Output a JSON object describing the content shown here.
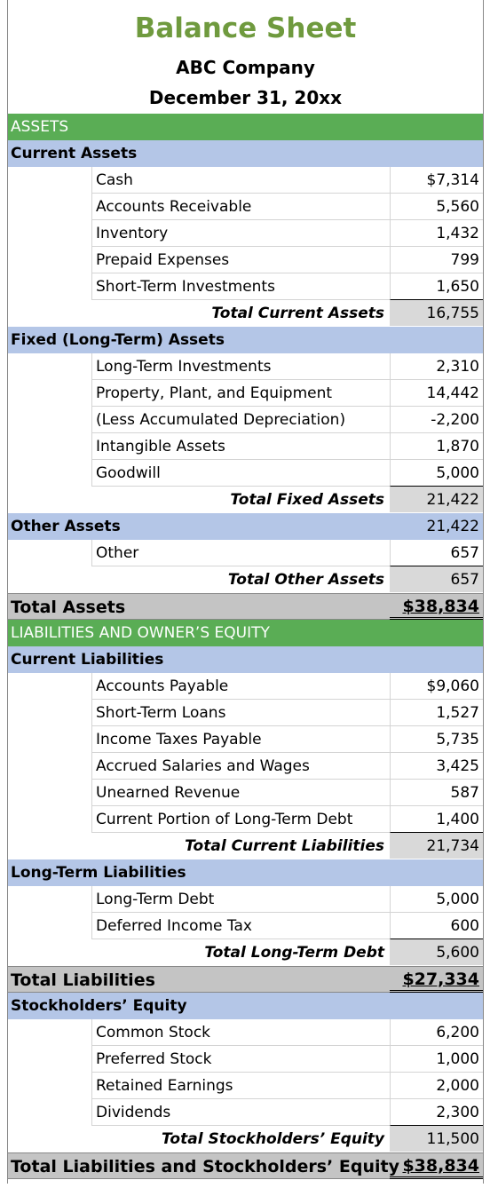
{
  "header": {
    "title": "Balance Sheet",
    "company": "ABC Company",
    "date": "December 31, 20xx"
  },
  "sections": [
    {
      "title": "ASSETS",
      "groups": [
        {
          "title": "Current Assets",
          "items": [
            [
              "Cash",
              "$7,314"
            ],
            [
              "Accounts Receivable",
              "5,560"
            ],
            [
              "Inventory",
              "1,432"
            ],
            [
              "Prepaid Expenses",
              "799"
            ],
            [
              "Short-Term Investments",
              "1,650"
            ]
          ],
          "total": [
            "Total Current Assets",
            "16,755"
          ]
        },
        {
          "title": "Fixed (Long-Term) Assets",
          "items": [
            [
              "Long-Term Investments",
              "2,310"
            ],
            [
              "Property, Plant, and Equipment",
              "14,442"
            ],
            [
              "(Less Accumulated Depreciation)",
              "-2,200"
            ],
            [
              "Intangible Assets",
              "1,870"
            ],
            [
              "Goodwill",
              "5,000"
            ]
          ],
          "total": [
            "Total Fixed Assets",
            "21,422"
          ]
        },
        {
          "title": "Other Assets",
          "value": "21,422",
          "items": [
            [
              "Other",
              "657"
            ]
          ],
          "total": [
            "Total Other Assets",
            "657"
          ]
        }
      ],
      "total": [
        "Total Assets",
        "$38,834"
      ]
    },
    {
      "title": "LIABILITIES AND OWNER’S EQUITY",
      "groups": [
        {
          "title": "Current Liabilities",
          "items": [
            [
              "Accounts Payable",
              "$9,060"
            ],
            [
              "Short-Term Loans",
              "1,527"
            ],
            [
              "Income Taxes Payable",
              "5,735"
            ],
            [
              "Accrued Salaries and Wages",
              "3,425"
            ],
            [
              "Unearned Revenue",
              "587"
            ],
            [
              "Current Portion of Long-Term Debt",
              "1,400"
            ]
          ],
          "total": [
            "Total Current Liabilities",
            "21,734"
          ]
        },
        {
          "title": "Long-Term Liabilities",
          "items": [
            [
              "Long-Term Debt",
              "5,000"
            ],
            [
              "Deferred Income Tax",
              "600"
            ]
          ],
          "total": [
            "Total Long-Term Debt",
            "5,600"
          ]
        }
      ],
      "total": [
        "Total Liabilities",
        "$27,334"
      ]
    },
    {
      "groups": [
        {
          "title": "Stockholders’ Equity",
          "items": [
            [
              "Common Stock",
              "6,200"
            ],
            [
              "Preferred Stock",
              "1,000"
            ],
            [
              "Retained Earnings",
              "2,000"
            ],
            [
              "Dividends",
              "2,300"
            ]
          ],
          "total": [
            "Total Stockholders’ Equity",
            "11,500"
          ]
        }
      ],
      "total": [
        "Total Liabilities and Stockholders’ Equity",
        "$38,834"
      ]
    }
  ]
}
